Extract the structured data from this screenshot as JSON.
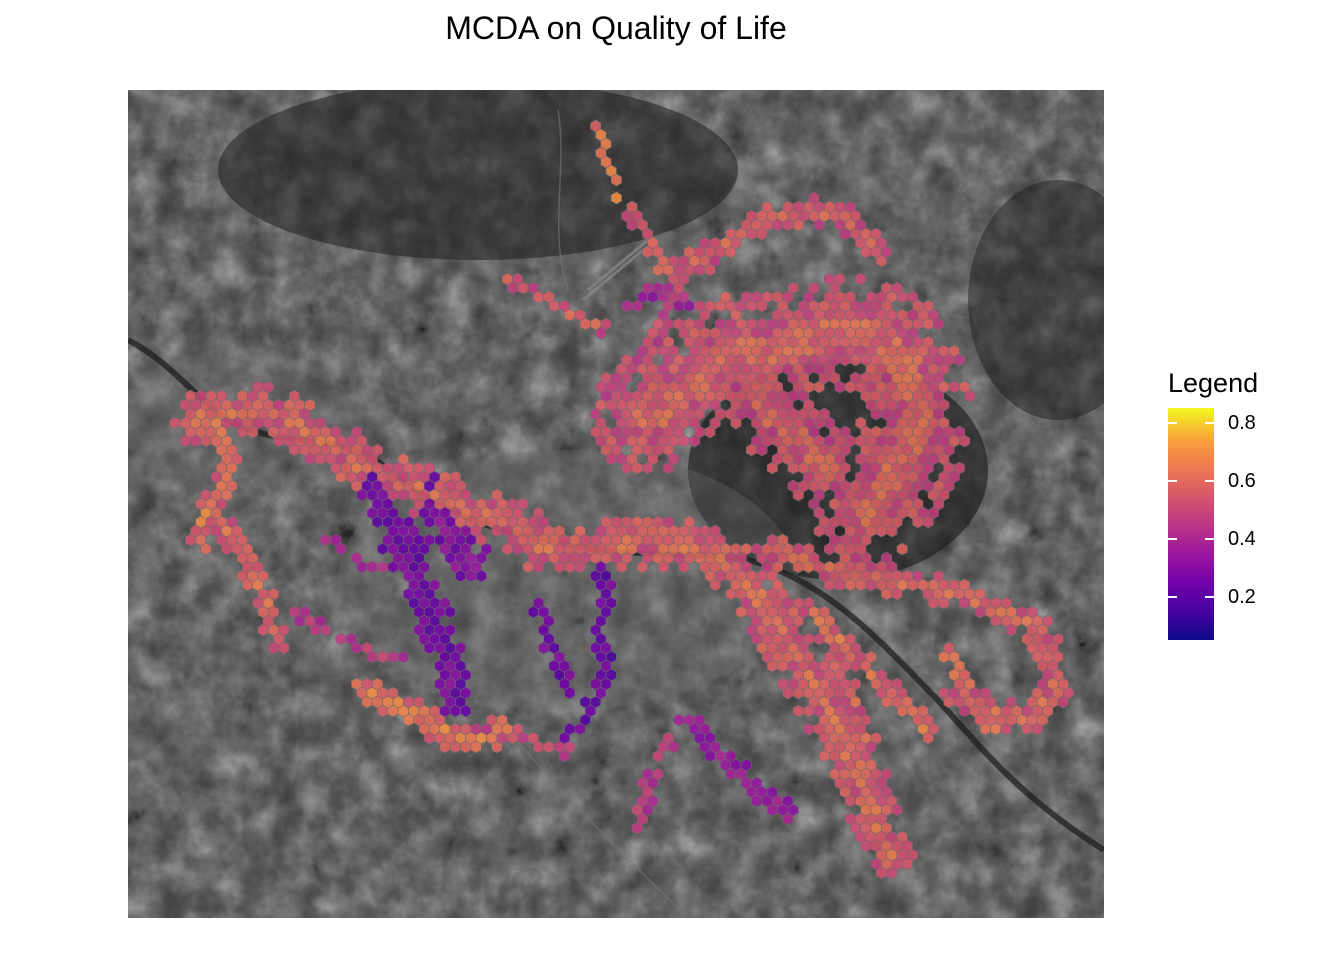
{
  "map": {
    "title": "MCDA on Quality of Life",
    "basemap": "grayscale-satellite",
    "overlay": "hexagonal grid cells coloured by MCDA score",
    "colormap": "plasma",
    "colors": [
      "#0d0887",
      "#46039f",
      "#7201a8",
      "#9c179e",
      "#bd3786",
      "#d8576b",
      "#ed7953",
      "#fb9f3a",
      "#f0f921"
    ]
  },
  "legend": {
    "title": "Legend",
    "range": [
      0.05,
      0.85
    ],
    "ticks": [
      {
        "value": 0.2,
        "label": "0.2"
      },
      {
        "value": 0.4,
        "label": "0.4"
      },
      {
        "value": 0.6,
        "label": "0.6"
      },
      {
        "value": 0.8,
        "label": "0.8"
      }
    ]
  }
}
